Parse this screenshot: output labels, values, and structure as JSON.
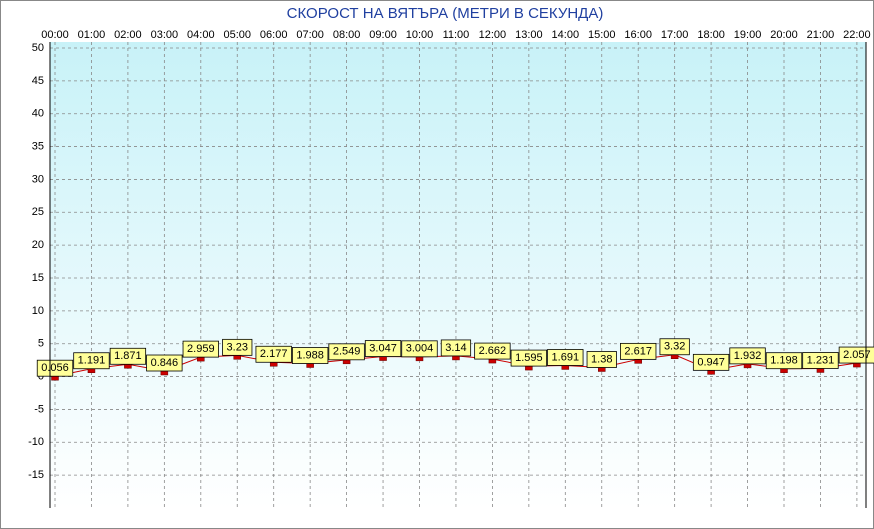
{
  "chart_data": {
    "type": "line",
    "title": "СКОРОСТ НА ВЯТЪРА (МЕТРИ В СЕКУНДА)",
    "categories": [
      "00:00",
      "01:00",
      "02:00",
      "03:00",
      "04:00",
      "05:00",
      "06:00",
      "07:00",
      "08:00",
      "09:00",
      "10:00",
      "11:00",
      "12:00",
      "13:00",
      "14:00",
      "15:00",
      "16:00",
      "17:00",
      "18:00",
      "19:00",
      "20:00",
      "21:00",
      "22:00"
    ],
    "series": [
      {
        "color": "#cc0000",
        "values": [
          0.056,
          1.191,
          1.871,
          0.846,
          2.959,
          3.23,
          2.177,
          1.988,
          2.549,
          3.047,
          3.004,
          3.14,
          2.662,
          1.595,
          1.691,
          1.38,
          2.617,
          3.32,
          0.947,
          1.932,
          1.198,
          1.231,
          2.057
        ]
      }
    ],
    "ylim": [
      -20,
      50
    ],
    "yticks": [
      50,
      45,
      40,
      35,
      30,
      25,
      20,
      15,
      10,
      5,
      0,
      -5,
      -10,
      -15
    ],
    "grid": true
  }
}
